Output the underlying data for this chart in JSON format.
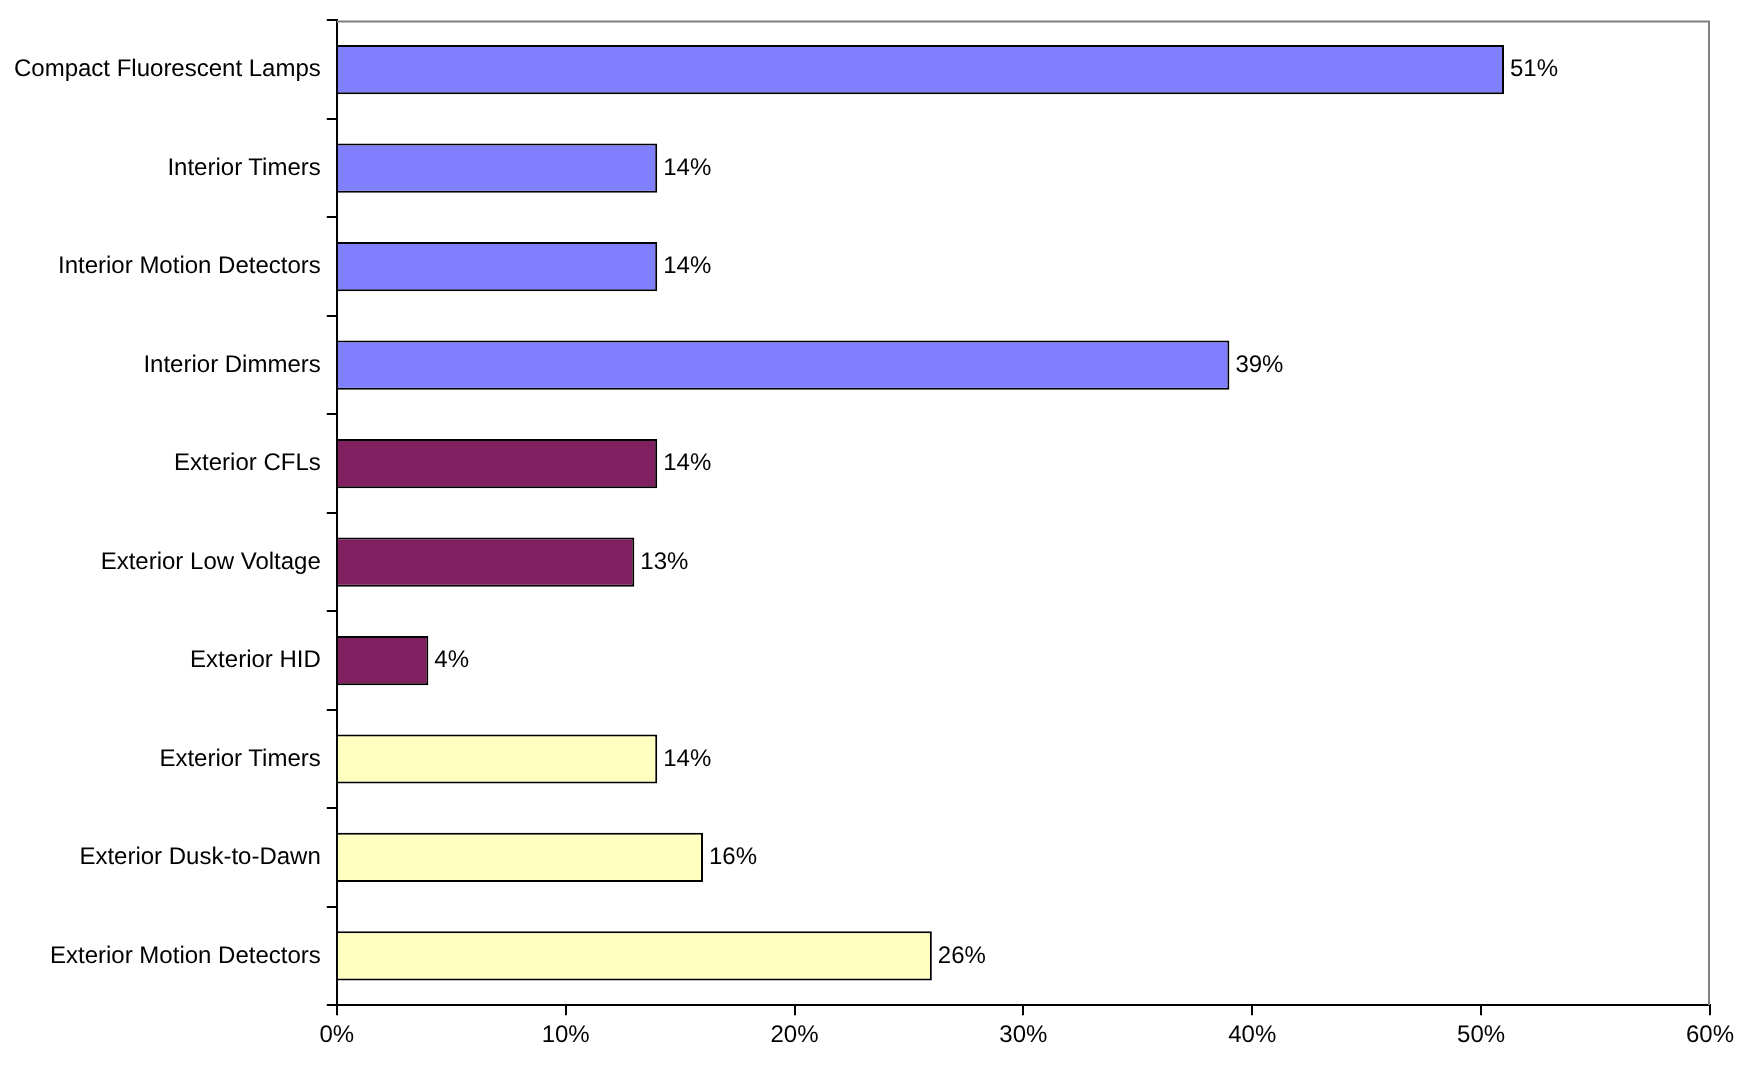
{
  "chart_data": {
    "type": "bar",
    "orientation": "horizontal",
    "categories": [
      "Compact Fluorescent Lamps",
      "Interior Timers",
      "Interior Motion Detectors",
      "Interior Dimmers",
      "Exterior CFLs",
      "Exterior Low Voltage",
      "Exterior HID",
      "Exterior Timers",
      "Exterior Dusk-to-Dawn",
      "Exterior Motion Detectors"
    ],
    "values": [
      51,
      14,
      14,
      39,
      14,
      13,
      4,
      14,
      16,
      26
    ],
    "colors": [
      "#8080ff",
      "#8080ff",
      "#8080ff",
      "#8080ff",
      "#802060",
      "#802060",
      "#802060",
      "#ffffc0",
      "#ffffc0",
      "#ffffc0"
    ],
    "value_labels": [
      "51%",
      "14%",
      "14%",
      "39%",
      "14%",
      "13%",
      "4%",
      "14%",
      "16%",
      "26%"
    ],
    "xlim": [
      0,
      60
    ],
    "xticks": [
      {
        "value": 0,
        "label": "0%"
      },
      {
        "value": 10,
        "label": "10%"
      },
      {
        "value": 20,
        "label": "20%"
      },
      {
        "value": 30,
        "label": "30%"
      },
      {
        "value": 40,
        "label": "40%"
      },
      {
        "value": 50,
        "label": "50%"
      },
      {
        "value": 60,
        "label": "60%"
      }
    ],
    "grid": false,
    "legend": false
  }
}
